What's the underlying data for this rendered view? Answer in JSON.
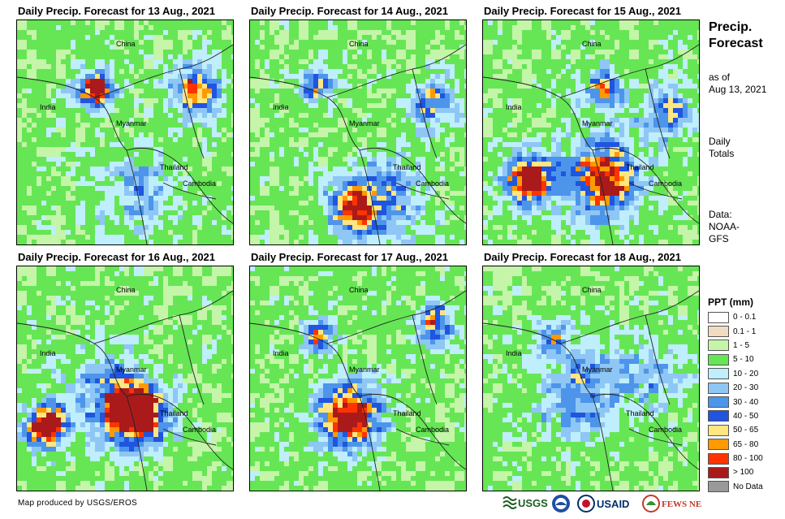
{
  "panels": [
    {
      "title": "Daily Precip. Forecast for 13 Aug., 2021",
      "intensity": 1
    },
    {
      "title": "Daily Precip. Forecast for 14 Aug., 2021",
      "intensity": 2
    },
    {
      "title": "Daily Precip. Forecast for 15 Aug., 2021",
      "intensity": 3
    },
    {
      "title": "Daily Precip. Forecast for 16 Aug., 2021",
      "intensity": 3
    },
    {
      "title": "Daily Precip. Forecast for 17 Aug., 2021",
      "intensity": 2
    },
    {
      "title": "Daily Precip. Forecast for 18 Aug., 2021",
      "intensity": 1
    }
  ],
  "map_labels": {
    "china": "China",
    "india": "India",
    "myanmar": "Myanmar",
    "thailand": "Thailand",
    "cambodia": "Cambodia"
  },
  "sidebar": {
    "title_line1": "Precip.",
    "title_line2": "Forecast",
    "asof_line1": "as of",
    "asof_line2": "Aug 13, 2021",
    "daily_line1": "Daily",
    "daily_line2": "Totals",
    "data_line1": "Data:",
    "data_line2": "NOAA-",
    "data_line3": "GFS"
  },
  "legend": {
    "title": "PPT (mm)",
    "items": [
      {
        "label": "0 - 0.1",
        "color": "#ffffff"
      },
      {
        "label": "0.1 - 1",
        "color": "#f0dcc0"
      },
      {
        "label": "1 - 5",
        "color": "#c4f5a8"
      },
      {
        "label": "5 - 10",
        "color": "#66e655"
      },
      {
        "label": "10 - 20",
        "color": "#bfeefc"
      },
      {
        "label": "20 - 30",
        "color": "#8ec6f5"
      },
      {
        "label": "30 - 40",
        "color": "#4d95ea"
      },
      {
        "label": "40 - 50",
        "color": "#1f55e0"
      },
      {
        "label": "50 - 65",
        "color": "#ffe680"
      },
      {
        "label": "65 - 80",
        "color": "#ff9900"
      },
      {
        "label": "80 - 100",
        "color": "#ff3300"
      },
      {
        "label": "> 100",
        "color": "#aa1a1a"
      },
      {
        "label": "No Data",
        "color": "#999999"
      }
    ]
  },
  "footer": {
    "credit": "Map produced by USGS/EROS"
  },
  "logos": {
    "usgs": "USGS",
    "usaid": "USAID",
    "fewsnet": "FEWS NET"
  }
}
